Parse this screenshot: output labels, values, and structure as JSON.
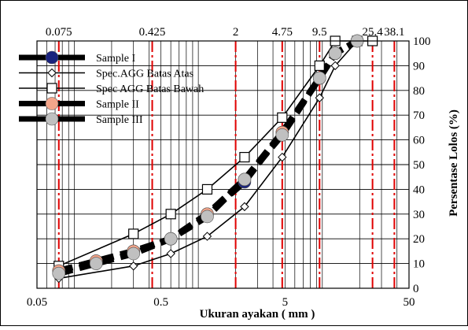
{
  "chart_data": {
    "type": "line",
    "xlabel": "Ukuran ayakan ( mm )",
    "ylabel": "Persentase Lolos (%)",
    "x_scale": "log",
    "xlim": [
      0.05,
      50
    ],
    "ylim": [
      0,
      100
    ],
    "grid": true,
    "legend_position": "top-left",
    "x_ticks": [
      {
        "value": 0.05,
        "label": "0.05"
      },
      {
        "value": 0.5,
        "label": "0.5"
      },
      {
        "value": 5,
        "label": "5"
      },
      {
        "value": 50,
        "label": "50"
      }
    ],
    "y_ticks": [
      0,
      10,
      20,
      30,
      40,
      50,
      60,
      70,
      80,
      90,
      100
    ],
    "sieve_sizes": [
      {
        "value": 0.075,
        "label": "0.075"
      },
      {
        "value": 0.425,
        "label": "0.425"
      },
      {
        "value": 2,
        "label": "2"
      },
      {
        "value": 4.75,
        "label": "4.75"
      },
      {
        "value": 9.5,
        "label": "9.5"
      },
      {
        "value": 25.4,
        "label": "25.4"
      },
      {
        "value": 38.1,
        "label": "38.1"
      }
    ],
    "sieve_line_color": "#e00000",
    "series": [
      {
        "name": "Sample I",
        "style": "thick-dashed",
        "color": "#000000",
        "marker": "circle",
        "marker_color": "#1a237e",
        "x": [
          0.075,
          0.15,
          0.3,
          0.6,
          1.18,
          2.36,
          4.75,
          9.5,
          12.7,
          19.1
        ],
        "y": [
          7,
          11,
          15,
          20,
          30,
          43,
          63,
          85,
          95,
          100
        ]
      },
      {
        "name": "Spec.AGG Batas Atas",
        "style": "solid",
        "color": "#000000",
        "marker": "diamond",
        "marker_color": "#ffffff",
        "x": [
          0.075,
          0.3,
          0.6,
          1.18,
          2.36,
          4.75,
          9.5,
          12.7,
          19.1
        ],
        "y": [
          4,
          9,
          14,
          21,
          33,
          53,
          77,
          90,
          100
        ]
      },
      {
        "name": "Spec AGG Batas Bawah",
        "style": "solid",
        "color": "#000000",
        "marker": "square",
        "marker_color": "#ffffff",
        "x": [
          0.075,
          0.3,
          0.6,
          1.18,
          2.36,
          4.75,
          9.5,
          12.7,
          19.1,
          25.4
        ],
        "y": [
          9,
          22,
          30,
          40,
          53,
          69,
          90,
          100,
          100,
          100
        ]
      },
      {
        "name": "Sample II",
        "style": "thick-dashed",
        "color": "#000000",
        "marker": "circle",
        "marker_color": "#f4a58a",
        "x": [
          0.075,
          0.15,
          0.3,
          0.6,
          1.18,
          2.36,
          4.75,
          9.5,
          12.7,
          19.1
        ],
        "y": [
          7,
          11,
          15,
          20,
          30,
          44,
          63,
          85,
          95,
          100
        ]
      },
      {
        "name": "Sample III",
        "style": "thick-dashed",
        "color": "#000000",
        "marker": "circle",
        "marker_color": "#c0c0c0",
        "x": [
          0.075,
          0.15,
          0.3,
          0.6,
          1.18,
          2.36,
          4.75,
          9.5,
          12.7,
          19.1
        ],
        "y": [
          6,
          10,
          14,
          20,
          29,
          44,
          62,
          85,
          95,
          100
        ]
      }
    ]
  }
}
